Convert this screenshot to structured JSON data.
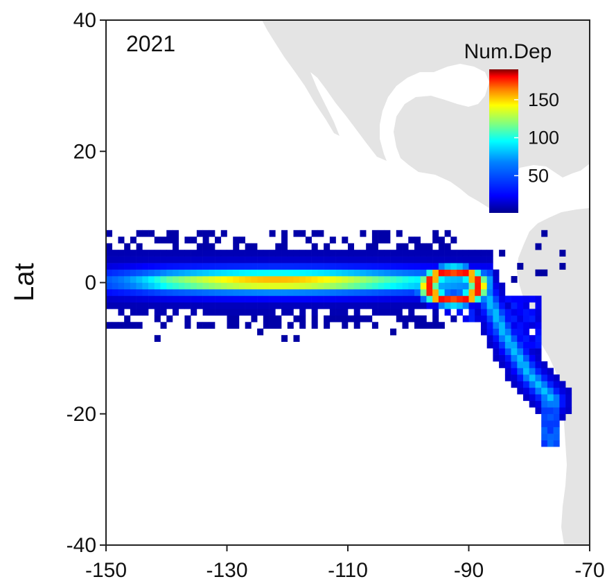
{
  "chart_data": {
    "type": "heatmap",
    "title": "2021",
    "xlabel": "",
    "ylabel": "Lat",
    "xlim": [
      -150,
      -70
    ],
    "ylim": [
      -40,
      40
    ],
    "x_ticks": [
      -150,
      -130,
      -110,
      -90,
      -70
    ],
    "y_ticks": [
      -40,
      -20,
      0,
      20,
      40
    ],
    "grid": false,
    "cell_size_deg": 1,
    "colorbar": {
      "title": "Num.Dep",
      "range": [
        1,
        190
      ],
      "ticks": [
        50,
        100,
        150
      ],
      "colors": [
        "#00008f",
        "#0000ff",
        "#0080ff",
        "#00ffff",
        "#80ff80",
        "#ffff00",
        "#ff8000",
        "#ff0000",
        "#800000"
      ]
    },
    "bands": [
      {
        "segment": "equatorial core",
        "lat_center": 0,
        "lon_from": -150,
        "lon_to": -96,
        "value_range": [
          40,
          150
        ]
      },
      {
        "segment": "ring near Galapagos",
        "lat_center": -1,
        "lon_from": -97,
        "lon_to": -88,
        "value_range": [
          60,
          185
        ]
      },
      {
        "segment": "coastal branch (Peru-Chile)",
        "lon_lat_path": [
          [
            -88,
            0
          ],
          [
            -84,
            -8
          ],
          [
            -80,
            -14
          ],
          [
            -76,
            -18
          ]
        ],
        "value_range": [
          30,
          100
        ]
      }
    ],
    "annotations": [
      "2021"
    ]
  },
  "legend": {
    "title": "Num.Dep"
  }
}
